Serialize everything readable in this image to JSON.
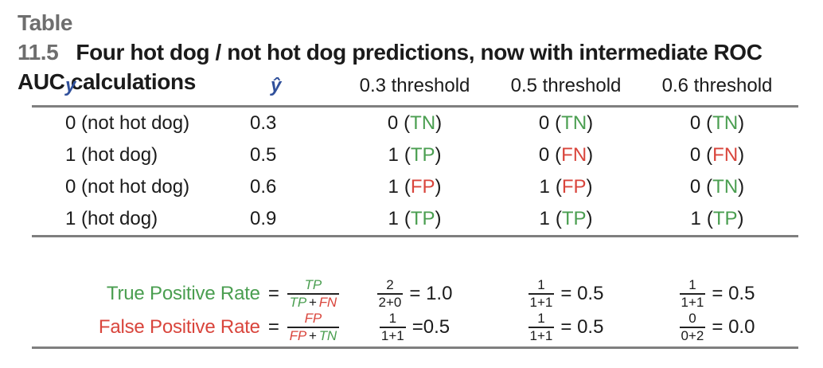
{
  "colors": {
    "green": "#4a9e50",
    "red": "#d9453c",
    "blue": "#30509b",
    "title_gray": "#6e6e6e",
    "text": "#1b1b1b",
    "rule_gray": "#7f7f7f"
  },
  "title": {
    "prefix": "Table 11.5",
    "line1": "Four hot dog / not hot dog predictions, now with intermediate ROC",
    "line2": "AUC calculations"
  },
  "punct": {
    "open": "(",
    "close": ")"
  },
  "header": {
    "y": "y",
    "yhat": "ŷ",
    "thresholds": [
      "0.3 threshold",
      "0.5 threshold",
      "0.6 threshold"
    ]
  },
  "rows": [
    {
      "y": "0 (not hot dog)",
      "yhat": "0.3",
      "cells": [
        {
          "v": "0",
          "tag": "TN"
        },
        {
          "v": "0",
          "tag": "TN"
        },
        {
          "v": "0",
          "tag": "TN"
        }
      ]
    },
    {
      "y": "1 (hot dog)",
      "yhat": "0.5",
      "cells": [
        {
          "v": "1",
          "tag": "TP"
        },
        {
          "v": "0",
          "tag": "FN"
        },
        {
          "v": "0",
          "tag": "FN"
        }
      ]
    },
    {
      "y": "0 (not hot dog)",
      "yhat": "0.6",
      "cells": [
        {
          "v": "1",
          "tag": "FP"
        },
        {
          "v": "1",
          "tag": "FP"
        },
        {
          "v": "0",
          "tag": "TN"
        }
      ]
    },
    {
      "y": "1 (hot dog)",
      "yhat": "0.9",
      "cells": [
        {
          "v": "1",
          "tag": "TP"
        },
        {
          "v": "1",
          "tag": "TP"
        },
        {
          "v": "1",
          "tag": "TP"
        }
      ]
    }
  ],
  "tpr": {
    "label": "True Positive Rate",
    "eq": "=",
    "frac": {
      "num": "TP",
      "den_a": "TP",
      "plus": "+",
      "den_b": "FN"
    },
    "cols": [
      {
        "num": "2",
        "den": "2+0",
        "rhs": "= 1.0"
      },
      {
        "num": "1",
        "den": "1+1",
        "rhs": "= 0.5"
      },
      {
        "num": "1",
        "den": "1+1",
        "rhs": "= 0.5"
      }
    ]
  },
  "fpr": {
    "label": "False Positive Rate",
    "eq": "=",
    "frac": {
      "num": "FP",
      "den_a": "FP",
      "plus": "+",
      "den_b": "TN"
    },
    "cols": [
      {
        "num": "1",
        "den": "1+1",
        "rhs": "=0.5"
      },
      {
        "num": "1",
        "den": "1+1",
        "rhs": "= 0.5"
      },
      {
        "num": "0",
        "den": "0+2",
        "rhs": "= 0.0"
      }
    ]
  }
}
